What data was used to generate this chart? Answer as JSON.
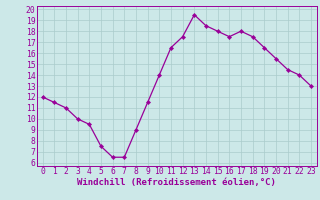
{
  "x": [
    0,
    1,
    2,
    3,
    4,
    5,
    6,
    7,
    8,
    9,
    10,
    11,
    12,
    13,
    14,
    15,
    16,
    17,
    18,
    19,
    20,
    21,
    22,
    23
  ],
  "y": [
    12,
    11.5,
    11,
    10,
    9.5,
    7.5,
    6.5,
    6.5,
    9,
    11.5,
    14,
    16.5,
    17.5,
    19.5,
    18.5,
    18,
    17.5,
    18,
    17.5,
    16.5,
    15.5,
    14.5,
    14,
    13
  ],
  "line_color": "#990099",
  "marker": "D",
  "marker_size": 2.2,
  "bg_color": "#cce8e8",
  "grid_color": "#aacccc",
  "xlabel": "Windchill (Refroidissement éolien,°C)",
  "xlabel_color": "#990099",
  "xlabel_fontsize": 6.5,
  "tick_color": "#990099",
  "tick_fontsize": 5.8,
  "ylim": [
    6,
    20
  ],
  "xlim": [
    -0.5,
    23.5
  ],
  "yticks": [
    6,
    7,
    8,
    9,
    10,
    11,
    12,
    13,
    14,
    15,
    16,
    17,
    18,
    19,
    20
  ],
  "xticks": [
    0,
    1,
    2,
    3,
    4,
    5,
    6,
    7,
    8,
    9,
    10,
    11,
    12,
    13,
    14,
    15,
    16,
    17,
    18,
    19,
    20,
    21,
    22,
    23
  ],
  "line_width": 0.9,
  "spine_color": "#990099"
}
